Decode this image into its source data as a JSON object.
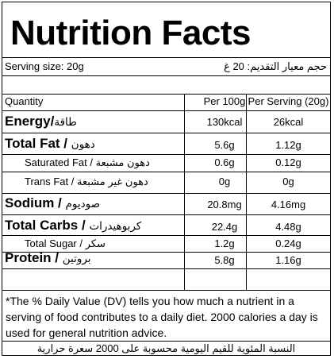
{
  "title": "Nutrition Facts",
  "serving": {
    "label_en": "Serving size: 20g",
    "label_ar": "حجم معيار التقديم: 20 غ"
  },
  "headers": {
    "quantity": "Quantity",
    "per_100g": "Per 100g",
    "per_serving": "Per Serving (20g)"
  },
  "rows": [
    {
      "name_en": "Energy/",
      "name_ar": "طاقة",
      "per_100g": "130kcal",
      "per_serving": "26kcal"
    },
    {
      "name_en": "Total Fat / ",
      "name_ar": "دهون",
      "per_100g": "5.6g",
      "per_serving": "1.12g"
    },
    {
      "name_en": "Saturated Fat / ",
      "name_ar": "دهون مشبعة",
      "per_100g": "0.6g",
      "per_serving": "0.12g"
    },
    {
      "name_en": "Trans Fat / ",
      "name_ar": "دهون غير مشبعة",
      "per_100g": "0g",
      "per_serving": "0g"
    },
    {
      "name_en": "Sodium / ",
      "name_ar": "صوديوم",
      "per_100g": "20.8mg",
      "per_serving": "4.16mg"
    },
    {
      "name_en": "Total Carbs / ",
      "name_ar": "كربوهيدرات",
      "per_100g": "22.4g",
      "per_serving": "4.48g"
    },
    {
      "name_en": "Total Sugar / ",
      "name_ar": "سكر",
      "per_100g": "1.2g",
      "per_serving": "0.24g"
    },
    {
      "name_en": "Protein / ",
      "name_ar": "بروتين",
      "per_100g": "5.8g",
      "per_serving": "1.16g"
    }
  ],
  "footnote_en": "*The % Daily Value (DV) tells you how much a nutrient in a serving of food contributes to a daily diet. 2000 calories a day is used for general nutrition advice.",
  "footnote_ar": "النسبة المئوية للقيم اليومية محسوبة على 2000 سعرة حرارية"
}
